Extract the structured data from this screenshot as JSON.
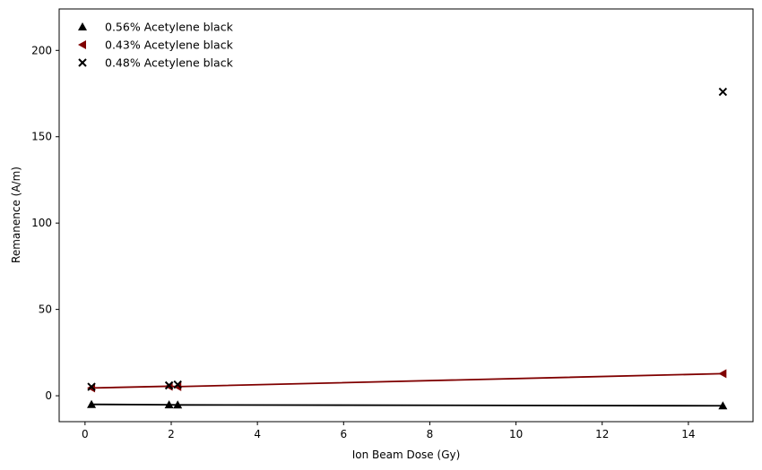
{
  "chart_data": {
    "type": "scatter",
    "xlabel": "Ion Beam Dose (Gy)",
    "ylabel": "Remanence (A/m)",
    "xlim": [
      -0.6,
      15.5
    ],
    "ylim": [
      -15,
      224
    ],
    "xticks": [
      0,
      2,
      4,
      6,
      8,
      10,
      12,
      14
    ],
    "yticks": [
      0,
      50,
      100,
      150,
      200
    ],
    "grid": false,
    "legend_position": "upper-left",
    "series": [
      {
        "name": "0.56% Acetylene black",
        "color": "#000000",
        "marker": "triangle-up",
        "line": true,
        "x": [
          0.15,
          1.95,
          2.15,
          14.8
        ],
        "y": [
          -5,
          -5.2,
          -5.3,
          -5.8
        ]
      },
      {
        "name": "0.43% Acetylene black",
        "color": "#800000",
        "marker": "triangle-left",
        "line": true,
        "x": [
          0.15,
          1.95,
          2.15,
          14.8
        ],
        "y": [
          4.5,
          5.5,
          5.3,
          12.8
        ]
      },
      {
        "name": "0.48% Acetylene black",
        "color": "#000000",
        "marker": "x",
        "line": false,
        "x": [
          0.15,
          1.95,
          2.15,
          14.8
        ],
        "y": [
          5.2,
          6.0,
          6.5,
          176
        ]
      }
    ]
  }
}
